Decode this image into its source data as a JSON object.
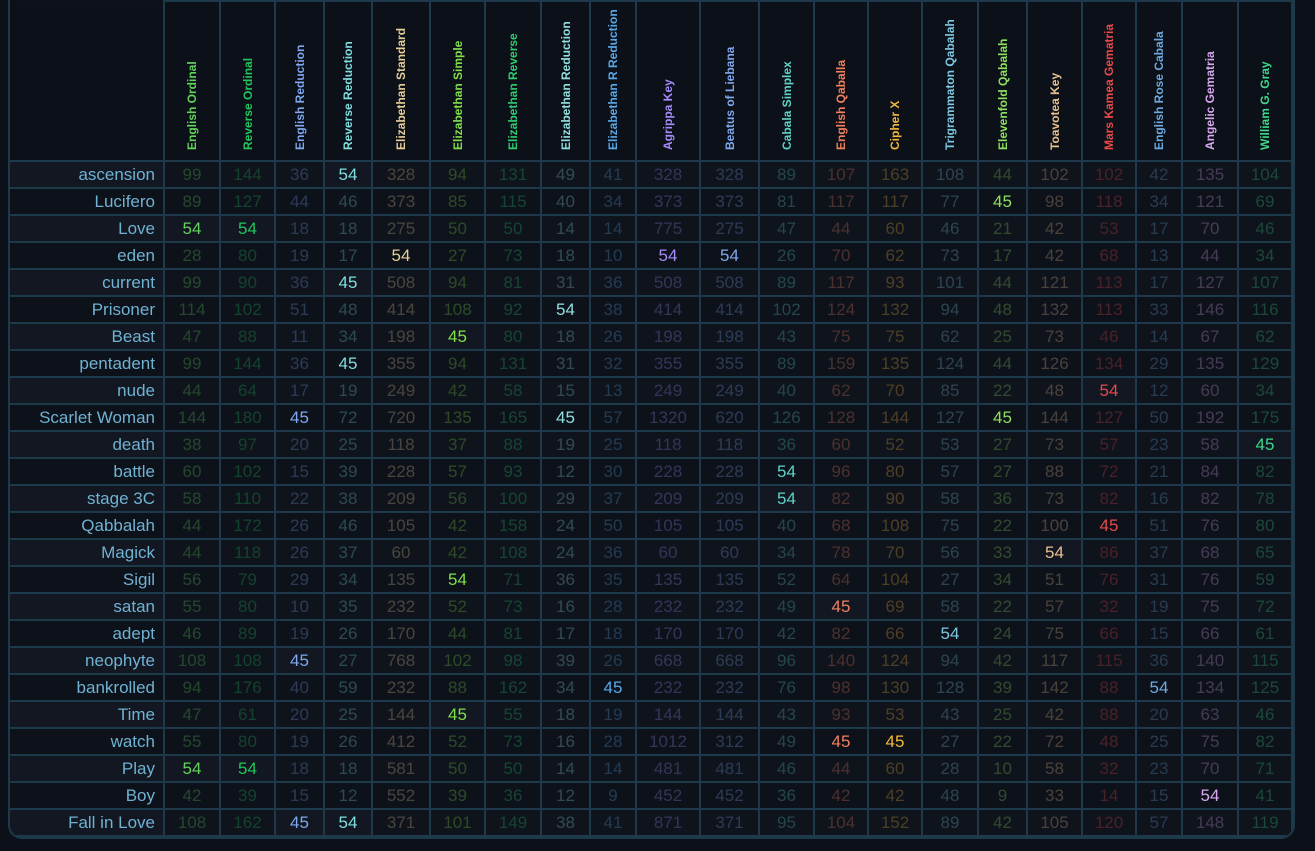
{
  "columns": [
    {
      "name": "English Ordinal",
      "color": "#62d45b"
    },
    {
      "name": "Reverse Ordinal",
      "color": "#22c55e"
    },
    {
      "name": "English Reduction",
      "color": "#7fa8f0"
    },
    {
      "name": "Reverse Reduction",
      "color": "#7fdfe0"
    },
    {
      "name": "Elizabethan Standard",
      "color": "#e6cf9a"
    },
    {
      "name": "Elizabethan Simple",
      "color": "#7fe04a"
    },
    {
      "name": "Elizabethan Reverse",
      "color": "#2ecc71"
    },
    {
      "name": "Elizabethan Reduction",
      "color": "#8fe0e0"
    },
    {
      "name": "Elizabethan R Reduction",
      "color": "#5aa8e8"
    },
    {
      "name": "Agrippa Key",
      "color": "#a78bfa"
    },
    {
      "name": "Beatus of Liebana",
      "color": "#7fa8f0"
    },
    {
      "name": "Cabala Simplex",
      "color": "#5fd3c8"
    },
    {
      "name": "English Qaballa",
      "color": "#f08060"
    },
    {
      "name": "Cipher X",
      "color": "#f6b73c"
    },
    {
      "name": "Trigrammaton Qabalah",
      "color": "#7ec8e3"
    },
    {
      "name": "Elevenfold Qabalah",
      "color": "#8fe060"
    },
    {
      "name": "Toavotea Key",
      "color": "#e8c090"
    },
    {
      "name": "Mars Kamea Gematria",
      "color": "#e84a4a"
    },
    {
      "name": "English Rose Cabala",
      "color": "#6fa8e0"
    },
    {
      "name": "Angelic Gematria",
      "color": "#d8a8f0"
    },
    {
      "name": "William G. Gray",
      "color": "#3fd88a"
    }
  ],
  "highlight_values": [
    45,
    54
  ],
  "rows": [
    {
      "label": "ascension",
      "values": [
        99,
        144,
        36,
        54,
        328,
        94,
        131,
        49,
        41,
        328,
        328,
        89,
        107,
        163,
        108,
        44,
        102,
        102,
        42,
        135,
        104
      ]
    },
    {
      "label": "Lucifero",
      "values": [
        89,
        127,
        44,
        46,
        373,
        85,
        115,
        40,
        34,
        373,
        373,
        81,
        117,
        117,
        77,
        45,
        98,
        118,
        34,
        121,
        69
      ]
    },
    {
      "label": "Love",
      "values": [
        54,
        54,
        18,
        18,
        275,
        50,
        50,
        14,
        14,
        775,
        275,
        47,
        44,
        60,
        46,
        21,
        42,
        53,
        17,
        70,
        46
      ]
    },
    {
      "label": "eden",
      "values": [
        28,
        80,
        19,
        17,
        54,
        27,
        73,
        18,
        10,
        54,
        54,
        26,
        70,
        62,
        73,
        17,
        42,
        68,
        13,
        44,
        34
      ]
    },
    {
      "label": "current",
      "values": [
        99,
        90,
        36,
        45,
        508,
        94,
        81,
        31,
        36,
        508,
        508,
        89,
        117,
        93,
        101,
        44,
        121,
        113,
        17,
        127,
        107
      ]
    },
    {
      "label": "Prisoner",
      "values": [
        114,
        102,
        51,
        48,
        414,
        108,
        92,
        54,
        38,
        414,
        414,
        102,
        124,
        132,
        94,
        48,
        132,
        113,
        33,
        146,
        116
      ]
    },
    {
      "label": "Beast",
      "values": [
        47,
        88,
        11,
        34,
        198,
        45,
        80,
        18,
        26,
        198,
        198,
        43,
        75,
        75,
        62,
        25,
        73,
        46,
        14,
        67,
        62
      ]
    },
    {
      "label": "pentadent",
      "values": [
        99,
        144,
        36,
        45,
        355,
        94,
        131,
        31,
        32,
        355,
        355,
        89,
        159,
        135,
        124,
        44,
        126,
        134,
        29,
        135,
        129
      ]
    },
    {
      "label": "nude",
      "values": [
        44,
        64,
        17,
        19,
        249,
        42,
        58,
        15,
        13,
        249,
        249,
        40,
        62,
        70,
        85,
        22,
        48,
        54,
        12,
        60,
        34
      ]
    },
    {
      "label": "Scarlet Woman",
      "values": [
        144,
        180,
        45,
        72,
        720,
        135,
        165,
        45,
        57,
        1320,
        620,
        126,
        128,
        144,
        127,
        45,
        144,
        127,
        50,
        192,
        175
      ]
    },
    {
      "label": "death",
      "values": [
        38,
        97,
        20,
        25,
        118,
        37,
        88,
        19,
        25,
        118,
        118,
        36,
        60,
        52,
        53,
        27,
        73,
        57,
        23,
        58,
        45
      ]
    },
    {
      "label": "battle",
      "values": [
        60,
        102,
        15,
        39,
        228,
        57,
        93,
        12,
        30,
        228,
        228,
        54,
        96,
        80,
        57,
        27,
        88,
        72,
        21,
        84,
        82
      ]
    },
    {
      "label": "stage 3C",
      "values": [
        58,
        110,
        22,
        38,
        209,
        56,
        100,
        29,
        37,
        209,
        209,
        54,
        82,
        90,
        58,
        36,
        73,
        82,
        16,
        82,
        78
      ]
    },
    {
      "label": "Qabbalah",
      "values": [
        44,
        172,
        26,
        46,
        105,
        42,
        158,
        24,
        50,
        105,
        105,
        40,
        68,
        108,
        75,
        22,
        100,
        45,
        51,
        76,
        80
      ]
    },
    {
      "label": "Magick",
      "values": [
        44,
        118,
        26,
        37,
        60,
        42,
        108,
        24,
        36,
        60,
        60,
        34,
        78,
        70,
        56,
        33,
        54,
        86,
        37,
        68,
        65
      ]
    },
    {
      "label": "Sigil",
      "values": [
        56,
        79,
        29,
        34,
        135,
        54,
        71,
        36,
        35,
        135,
        135,
        52,
        64,
        104,
        27,
        34,
        51,
        76,
        31,
        76,
        59
      ]
    },
    {
      "label": "satan",
      "values": [
        55,
        80,
        10,
        35,
        232,
        52,
        73,
        16,
        28,
        232,
        232,
        49,
        45,
        69,
        58,
        22,
        57,
        32,
        19,
        75,
        72
      ]
    },
    {
      "label": "adept",
      "values": [
        46,
        89,
        19,
        26,
        170,
        44,
        81,
        17,
        18,
        170,
        170,
        42,
        82,
        66,
        54,
        24,
        75,
        66,
        15,
        66,
        61
      ]
    },
    {
      "label": "neophyte",
      "values": [
        108,
        108,
        45,
        27,
        768,
        102,
        98,
        39,
        26,
        668,
        668,
        96,
        140,
        124,
        94,
        42,
        117,
        115,
        36,
        140,
        115
      ]
    },
    {
      "label": "bankrolled",
      "values": [
        94,
        176,
        40,
        59,
        232,
        88,
        162,
        34,
        45,
        232,
        232,
        76,
        98,
        130,
        128,
        39,
        142,
        88,
        54,
        134,
        125
      ]
    },
    {
      "label": "Time",
      "values": [
        47,
        61,
        20,
        25,
        144,
        45,
        55,
        18,
        19,
        144,
        144,
        43,
        93,
        53,
        43,
        25,
        42,
        88,
        20,
        63,
        46
      ]
    },
    {
      "label": "watch",
      "values": [
        55,
        80,
        19,
        26,
        412,
        52,
        73,
        16,
        28,
        1012,
        312,
        49,
        45,
        45,
        27,
        22,
        72,
        48,
        25,
        75,
        82
      ]
    },
    {
      "label": "Play",
      "values": [
        54,
        54,
        18,
        18,
        581,
        50,
        50,
        14,
        14,
        481,
        481,
        46,
        44,
        60,
        28,
        10,
        58,
        32,
        23,
        70,
        71
      ]
    },
    {
      "label": "Boy",
      "values": [
        42,
        39,
        15,
        12,
        552,
        39,
        36,
        12,
        9,
        452,
        452,
        36,
        42,
        42,
        48,
        9,
        33,
        14,
        15,
        54,
        41
      ]
    },
    {
      "label": "Fall in Love",
      "values": [
        108,
        162,
        45,
        54,
        371,
        101,
        149,
        38,
        41,
        871,
        371,
        95,
        104,
        152,
        89,
        42,
        105,
        120,
        57,
        148,
        119
      ]
    }
  ]
}
